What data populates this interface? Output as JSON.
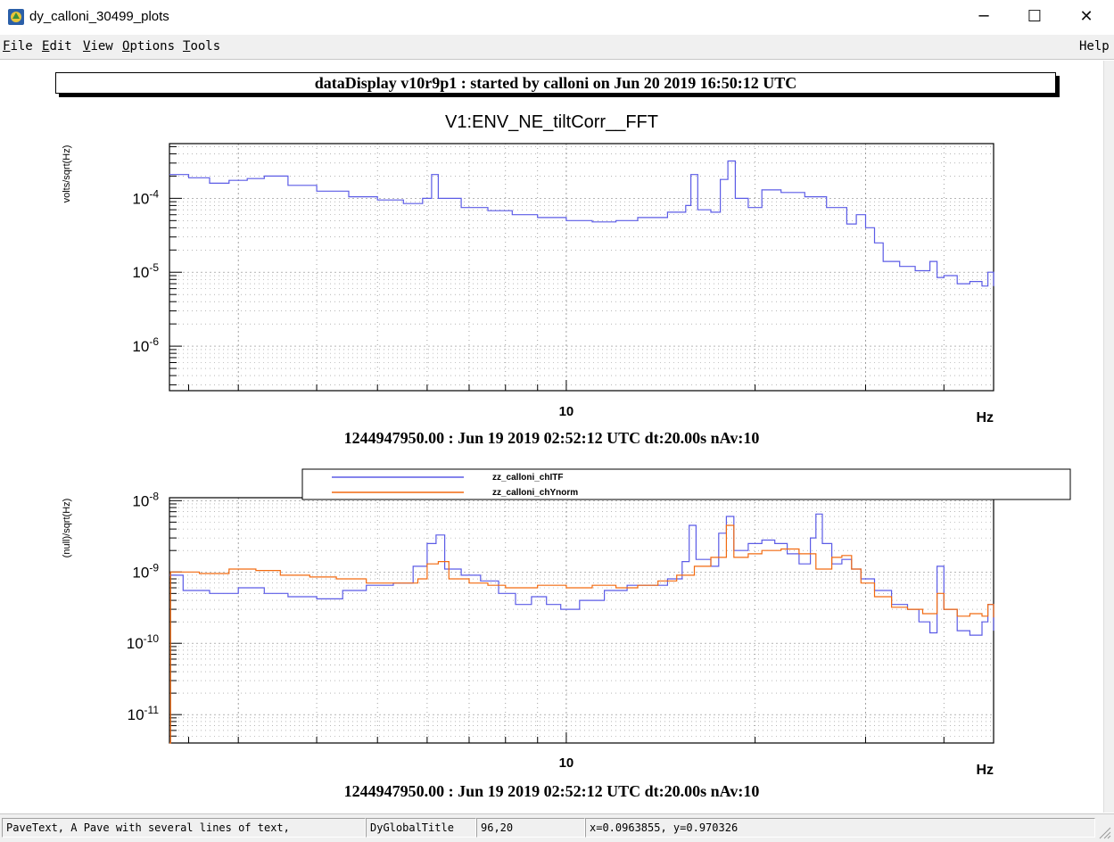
{
  "window": {
    "title": "dy_calloni_30499_plots",
    "minimize_glyph": "─",
    "maximize_glyph": "☐",
    "close_glyph": "✕"
  },
  "menubar": {
    "items": [
      {
        "accel": "F",
        "rest": "ile"
      },
      {
        "accel": "E",
        "rest": "dit"
      },
      {
        "accel": "V",
        "rest": "iew"
      },
      {
        "accel": "O",
        "rest": "ptions"
      },
      {
        "accel": "T",
        "rest": "ools"
      }
    ],
    "help": "Help"
  },
  "global_title": "dataDisplay v10r9p1 : started by calloni on Jun 20 2019 16:50:12 UTC",
  "colors": {
    "blue": "#5b5be6",
    "orange": "#f26a10",
    "grid": "#8a8a8a"
  },
  "chart_data": [
    {
      "type": "line",
      "title": "V1:ENV_NE_tiltCorr__FFT",
      "ylabel": "volts/sqrt(Hz)",
      "xlabel": "Hz",
      "xscale": "log",
      "yscale": "log",
      "xlim": [
        2.33,
        48.0
      ],
      "ylim": [
        2.5e-07,
        0.00055
      ],
      "xticks": [
        {
          "v": 10,
          "label": "10"
        }
      ],
      "yticks": [
        {
          "v": 0.0001,
          "base": "10",
          "exp": "-4"
        },
        {
          "v": 1e-05,
          "base": "10",
          "exp": "-5"
        },
        {
          "v": 1e-06,
          "base": "10",
          "exp": "-6"
        }
      ],
      "grid": true,
      "subtitle": "1244947950.00 : Jun 19 2019 02:52:12 UTC dt:20.00s nAv:10",
      "series": [
        {
          "color": "blue",
          "points": [
            [
              2.33,
              0.00021
            ],
            [
              2.5,
              0.00019
            ],
            [
              2.7,
              0.00016
            ],
            [
              2.9,
              0.000175
            ],
            [
              3.1,
              0.000185
            ],
            [
              3.3,
              0.0002
            ],
            [
              3.6,
              0.00015
            ],
            [
              4.0,
              0.000125
            ],
            [
              4.5,
              0.000105
            ],
            [
              5.0,
              9.5e-05
            ],
            [
              5.5,
              8.5e-05
            ],
            [
              5.9,
              0.0001
            ],
            [
              6.1,
              0.00021
            ],
            [
              6.25,
              0.0001
            ],
            [
              6.8,
              7.5e-05
            ],
            [
              7.5,
              6.8e-05
            ],
            [
              8.2,
              6e-05
            ],
            [
              9.0,
              5.5e-05
            ],
            [
              10,
              5e-05
            ],
            [
              11,
              4.8e-05
            ],
            [
              12,
              5e-05
            ],
            [
              13,
              5.5e-05
            ],
            [
              14.5,
              6.5e-05
            ],
            [
              15.5,
              8e-05
            ],
            [
              15.8,
              0.00021
            ],
            [
              16.2,
              7e-05
            ],
            [
              17.0,
              6.5e-05
            ],
            [
              17.6,
              0.00018
            ],
            [
              18.1,
              0.00032
            ],
            [
              18.6,
              0.0001
            ],
            [
              19.5,
              7.5e-05
            ],
            [
              20.5,
              0.00013
            ],
            [
              22,
              0.00012
            ],
            [
              24,
              0.000105
            ],
            [
              26,
              7.5e-05
            ],
            [
              28,
              4.5e-05
            ],
            [
              29,
              6e-05
            ],
            [
              30,
              4e-05
            ],
            [
              31,
              2.5e-05
            ],
            [
              32,
              1.4e-05
            ],
            [
              34,
              1.2e-05
            ],
            [
              36,
              1.05e-05
            ],
            [
              38,
              1.4e-05
            ],
            [
              39,
              8.5e-06
            ],
            [
              40,
              9e-06
            ],
            [
              42,
              7e-06
            ],
            [
              44,
              7.5e-06
            ],
            [
              46,
              6.5e-06
            ],
            [
              47,
              1e-05
            ],
            [
              48,
              6.5e-06
            ]
          ]
        }
      ]
    },
    {
      "type": "line",
      "ylabel": "(null)/sqrt(Hz)",
      "xlabel": "Hz",
      "xscale": "log",
      "yscale": "log",
      "xlim": [
        2.33,
        48.0
      ],
      "ylim": [
        4e-12,
        1.1e-08
      ],
      "xticks": [
        {
          "v": 10,
          "label": "10"
        }
      ],
      "yticks": [
        {
          "v": 1e-08,
          "base": "10",
          "exp": "-8"
        },
        {
          "v": 1e-09,
          "base": "10",
          "exp": "-9"
        },
        {
          "v": 1e-10,
          "base": "10",
          "exp": "-10"
        },
        {
          "v": 1e-11,
          "base": "10",
          "exp": "-11"
        }
      ],
      "grid": true,
      "legend": "top-right",
      "subtitle": "1244947950.00 : Jun 19 2019 02:52:12 UTC dt:20.00s nAv:10",
      "series": [
        {
          "name": "zz_calloni_chITF",
          "color": "blue",
          "points": [
            [
              2.33,
              9e-10
            ],
            [
              2.45,
              5.5e-10
            ],
            [
              2.7,
              5e-10
            ],
            [
              3.0,
              6e-10
            ],
            [
              3.3,
              5e-10
            ],
            [
              3.6,
              4.5e-10
            ],
            [
              4.0,
              4.2e-10
            ],
            [
              4.4,
              5.5e-10
            ],
            [
              4.8,
              6.5e-10
            ],
            [
              5.3,
              7e-10
            ],
            [
              5.7,
              1.2e-09
            ],
            [
              6.0,
              2.5e-09
            ],
            [
              6.2,
              3.3e-09
            ],
            [
              6.4,
              1.1e-09
            ],
            [
              6.8,
              9e-10
            ],
            [
              7.3,
              7.5e-10
            ],
            [
              7.8,
              5e-10
            ],
            [
              8.3,
              3.5e-10
            ],
            [
              8.8,
              4.5e-10
            ],
            [
              9.3,
              3.5e-10
            ],
            [
              9.8,
              3e-10
            ],
            [
              10.5,
              4e-10
            ],
            [
              11.5,
              5.5e-10
            ],
            [
              12.5,
              6.5e-10
            ],
            [
              13.5,
              6.5e-10
            ],
            [
              14.5,
              8e-10
            ],
            [
              15.3,
              1.4e-09
            ],
            [
              15.7,
              4.5e-09
            ],
            [
              16.1,
              1.5e-09
            ],
            [
              17.0,
              1.2e-09
            ],
            [
              17.5,
              3.5e-09
            ],
            [
              18.0,
              6e-09
            ],
            [
              18.5,
              2e-09
            ],
            [
              19.5,
              2.5e-09
            ],
            [
              20.5,
              2.8e-09
            ],
            [
              21.5,
              2.5e-09
            ],
            [
              22.5,
              1.8e-09
            ],
            [
              23.5,
              1.3e-09
            ],
            [
              24.5,
              3e-09
            ],
            [
              25.0,
              6.5e-09
            ],
            [
              25.6,
              2.5e-09
            ],
            [
              26.5,
              1.3e-09
            ],
            [
              27.5,
              1.5e-09
            ],
            [
              28.5,
              1.1e-09
            ],
            [
              29.5,
              8e-10
            ],
            [
              31,
              5.5e-10
            ],
            [
              33,
              3.5e-10
            ],
            [
              35,
              3e-10
            ],
            [
              36.5,
              2e-10
            ],
            [
              38,
              1.4e-10
            ],
            [
              39,
              1.2e-09
            ],
            [
              40,
              3e-10
            ],
            [
              42,
              1.5e-10
            ],
            [
              44,
              1.3e-10
            ],
            [
              46,
              2e-10
            ],
            [
              47,
              3.5e-10
            ],
            [
              48,
              1.5e-10
            ]
          ]
        },
        {
          "name": "zz_calloni_chYnorm",
          "color": "orange",
          "points": [
            [
              2.33,
              4e-12
            ],
            [
              2.34,
              1e-09
            ],
            [
              2.6,
              9.5e-10
            ],
            [
              2.9,
              1.1e-09
            ],
            [
              3.2,
              1.05e-09
            ],
            [
              3.5,
              9e-10
            ],
            [
              3.9,
              8.5e-10
            ],
            [
              4.3,
              8e-10
            ],
            [
              4.8,
              7e-10
            ],
            [
              5.3,
              7e-10
            ],
            [
              5.8,
              8e-10
            ],
            [
              6.0,
              1.3e-09
            ],
            [
              6.25,
              1.4e-09
            ],
            [
              6.5,
              8e-10
            ],
            [
              7.0,
              7e-10
            ],
            [
              7.5,
              6.5e-10
            ],
            [
              8.0,
              6e-10
            ],
            [
              9.0,
              6.5e-10
            ],
            [
              10.0,
              6e-10
            ],
            [
              11.0,
              6.5e-10
            ],
            [
              12.0,
              6e-10
            ],
            [
              13.0,
              6.5e-10
            ],
            [
              14.0,
              7.5e-10
            ],
            [
              15.0,
              9e-10
            ],
            [
              16.0,
              1.2e-09
            ],
            [
              17.0,
              1.6e-09
            ],
            [
              18.0,
              4.5e-09
            ],
            [
              18.5,
              1.6e-09
            ],
            [
              19.5,
              1.8e-09
            ],
            [
              20.5,
              2e-09
            ],
            [
              22.0,
              2.1e-09
            ],
            [
              23.5,
              1.8e-09
            ],
            [
              25.0,
              1.1e-09
            ],
            [
              26.5,
              1.6e-09
            ],
            [
              27.5,
              1.7e-09
            ],
            [
              28.5,
              1.1e-09
            ],
            [
              29.5,
              7e-10
            ],
            [
              31.0,
              4.5e-10
            ],
            [
              33.0,
              3.2e-10
            ],
            [
              35.0,
              3e-10
            ],
            [
              37.0,
              2.6e-10
            ],
            [
              39.0,
              5e-10
            ],
            [
              40.0,
              3e-10
            ],
            [
              42.0,
              2.4e-10
            ],
            [
              44.0,
              2.6e-10
            ],
            [
              46.0,
              2.4e-10
            ],
            [
              47.0,
              3.5e-10
            ],
            [
              48.0,
              2.3e-10
            ]
          ]
        }
      ]
    }
  ],
  "statusbar": {
    "object_info": "PaveText, A Pave with several lines of text,",
    "object_name": "DyGlobalTitle",
    "pixel_pos": "96,20",
    "ndc_pos": "x=0.0963855, y=0.970326"
  }
}
